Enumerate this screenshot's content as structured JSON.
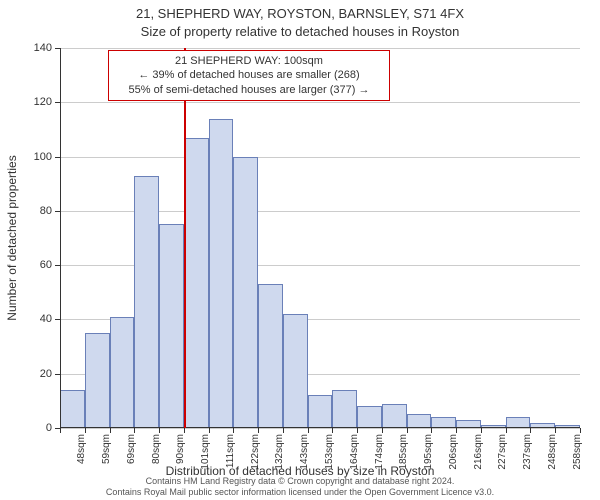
{
  "title_line1": "21, SHEPHERD WAY, ROYSTON, BARNSLEY, S71 4FX",
  "title_line2": "Size of property relative to detached houses in Royston",
  "annotation": {
    "line1": "21 SHEPHERD WAY: 100sqm",
    "line2": "← 39% of detached houses are smaller (268)",
    "line3": "55% of semi-detached houses are larger (377) →"
  },
  "chart": {
    "type": "histogram",
    "ylabel": "Number of detached properties",
    "xlabel": "Distribution of detached houses by size in Royston",
    "ylim": [
      0,
      140
    ],
    "ytick_step": 20,
    "yticks": [
      0,
      20,
      40,
      60,
      80,
      100,
      120,
      140
    ],
    "xtick_labels": [
      "48sqm",
      "59sqm",
      "69sqm",
      "80sqm",
      "90sqm",
      "101sqm",
      "111sqm",
      "122sqm",
      "132sqm",
      "143sqm",
      "153sqm",
      "164sqm",
      "174sqm",
      "185sqm",
      "195sqm",
      "206sqm",
      "216sqm",
      "227sqm",
      "237sqm",
      "248sqm",
      "258sqm"
    ],
    "values": [
      14,
      35,
      41,
      93,
      75,
      107,
      114,
      100,
      53,
      42,
      12,
      14,
      8,
      9,
      5,
      4,
      3,
      1,
      4,
      2,
      1
    ],
    "bar_fill": "#cfd9ee",
    "bar_border": "#6a80b8",
    "grid_color": "#cccccc",
    "background_color": "#ffffff",
    "ref_line_after_index": 5,
    "ref_line_color": "#cc0000",
    "title_fontsize": 13,
    "label_fontsize": 12,
    "tick_fontsize": 11
  },
  "footer": {
    "line1": "Contains HM Land Registry data © Crown copyright and database right 2024.",
    "line2": "Contains Royal Mail public sector information licensed under the Open Government Licence v3.0."
  }
}
